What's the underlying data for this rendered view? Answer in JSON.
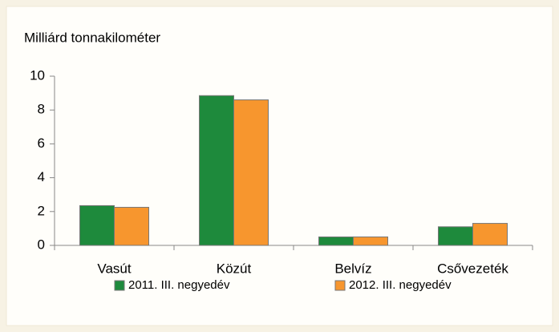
{
  "chart_data": {
    "type": "bar",
    "ylabel": "Milliárd tonnakilométer",
    "categories": [
      "Vasút",
      "Közút",
      "Belvíz",
      "Csővezeték"
    ],
    "series": [
      {
        "name": "2011. III. negyedév",
        "color": "#1e8a3c",
        "values": [
          2.35,
          8.85,
          0.5,
          1.1
        ]
      },
      {
        "name": "2012. III. negyedév",
        "color": "#f7962e",
        "values": [
          2.25,
          8.6,
          0.5,
          1.3
        ]
      }
    ],
    "ylim": [
      0,
      10
    ],
    "yticks": [
      0,
      2,
      4,
      6,
      8,
      10
    ],
    "grid": false,
    "legend": "bottom"
  }
}
